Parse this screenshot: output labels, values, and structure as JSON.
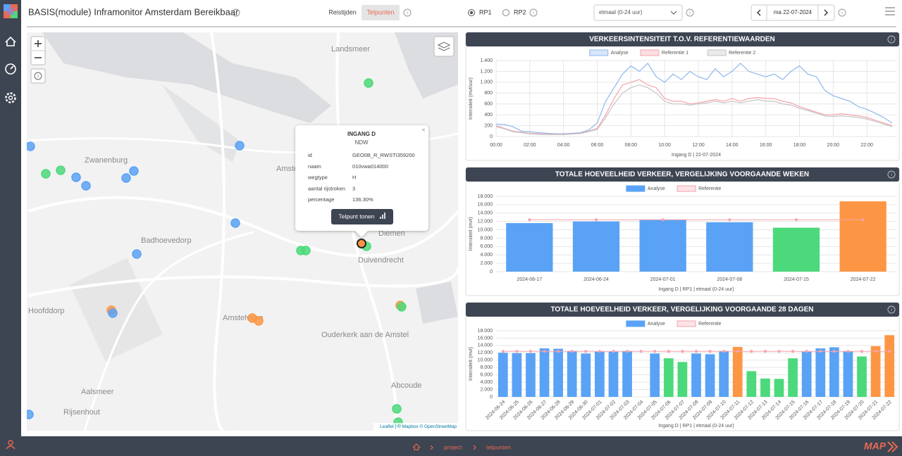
{
  "header": {
    "title": "BASIS(module) Inframonitor Amsterdam Bereikbaar",
    "tabs": [
      "Reistijden",
      "Telpunten"
    ],
    "radios": [
      "RP1",
      "RP2"
    ],
    "period": "etmaal (0-24 uur)",
    "date": "ma 22-07-2024"
  },
  "map": {
    "labels": [
      "Landsmeer",
      "Zwanenburg",
      "Badhoevedorp",
      "Hoofddorp",
      "Amsterdam",
      "Amstelveen",
      "Diemen",
      "Duivendrecht",
      "Ouderkerk aan de Amstel",
      "Abcoude",
      "Aalsmeer",
      "Rijsenhout"
    ],
    "popup": {
      "title": "INGANG D",
      "source": "NDW",
      "rows": [
        [
          "id",
          "GEO0B_R_RWSTI359200"
        ],
        [
          "naam",
          "010vwa014000"
        ],
        [
          "wegtype",
          "H"
        ],
        [
          "aantal rijstroken",
          "3"
        ],
        [
          "percentage",
          "136.30%"
        ]
      ],
      "button": "Telpunt tonen"
    },
    "attribution": "Leaflet | © Mapbox © OpenStreetMap"
  },
  "charts": [
    {
      "type": "line",
      "title": "VERKEERSINTENSITEIT T.O.V. REFERENTIEWAARDEN",
      "x": [
        0,
        0.5,
        1,
        1.5,
        2,
        2.5,
        3,
        3.5,
        4,
        4.5,
        5,
        5.5,
        6,
        6.5,
        7,
        7.5,
        8,
        8.5,
        9,
        9.5,
        10,
        10.5,
        11,
        11.5,
        12,
        12.5,
        13,
        13.5,
        14,
        14.5,
        15,
        15.5,
        16,
        16.5,
        17,
        17.5,
        18,
        18.5,
        19,
        19.5,
        20,
        20.5,
        21,
        21.5,
        22,
        22.5,
        23,
        23.5
      ],
      "series": [
        {
          "name": "Analyse",
          "color": "#8db8ee",
          "values": [
            230,
            220,
            180,
            100,
            90,
            70,
            60,
            50,
            50,
            60,
            70,
            120,
            250,
            650,
            900,
            1150,
            1300,
            1200,
            1350,
            1100,
            1000,
            1150,
            1050,
            1200,
            1100,
            1050,
            1250,
            1100,
            1200,
            1350,
            1200,
            1150,
            1100,
            1150,
            1050,
            1200,
            1300,
            1150,
            1100,
            850,
            750,
            700,
            650,
            550,
            500,
            430,
            350,
            250
          ]
        },
        {
          "name": "Referentie 1",
          "color": "#f4a3ad",
          "values": [
            200,
            150,
            100,
            80,
            60,
            50,
            40,
            40,
            40,
            50,
            60,
            100,
            150,
            400,
            700,
            950,
            1000,
            1050,
            950,
            900,
            700,
            650,
            650,
            600,
            620,
            650,
            680,
            650,
            700,
            650,
            700,
            720,
            700,
            700,
            650,
            620,
            550,
            500,
            450,
            400,
            400,
            420,
            400,
            380,
            350,
            300,
            250,
            200
          ]
        },
        {
          "name": "Referentie 2",
          "color": "#c4c4c4",
          "values": [
            180,
            140,
            90,
            70,
            50,
            40,
            35,
            35,
            35,
            45,
            55,
            90,
            130,
            350,
            600,
            800,
            900,
            950,
            900,
            800,
            650,
            600,
            600,
            580,
            600,
            620,
            650,
            620,
            650,
            620,
            650,
            680,
            650,
            650,
            600,
            580,
            520,
            480,
            430,
            380,
            370,
            380,
            370,
            350,
            320,
            280,
            230,
            180
          ]
        }
      ],
      "xlim": [
        0,
        23.75
      ],
      "xticks": [
        {
          "value": 0,
          "label": "00:00"
        },
        {
          "value": 2,
          "label": "02:00"
        },
        {
          "value": 4,
          "label": "04:00"
        },
        {
          "value": 6,
          "label": "06:00"
        },
        {
          "value": 8,
          "label": "08:00"
        },
        {
          "value": 10,
          "label": "10:00"
        },
        {
          "value": 12,
          "label": "12:00"
        },
        {
          "value": 14,
          "label": "14:00"
        },
        {
          "value": 16,
          "label": "16:00"
        },
        {
          "value": 18,
          "label": "18:00"
        },
        {
          "value": 20,
          "label": "20:00"
        },
        {
          "value": 22,
          "label": "22:00"
        }
      ],
      "ylim": [
        0,
        1400
      ],
      "yticks": [
        0,
        200,
        400,
        600,
        800,
        {
          "value": 1000,
          "label": "1.000"
        },
        {
          "value": 1200,
          "label": "1.200"
        },
        {
          "value": 1400,
          "label": "1.400"
        }
      ],
      "ylabel": "Intensiteit (mvt/uur)",
      "xlabel": "Ingang D | 22-07-2024",
      "grid": true
    },
    {
      "type": "bar",
      "title": "TOTALE HOEVEELHEID VERKEER, VERGELIJKING VOORGAANDE WEKEN",
      "categories": [
        "2024-06-17",
        "2024-06-24",
        "2024-07-01",
        "2024-07-08",
        "2024-07-15",
        "2024-07-22"
      ],
      "series": [
        {
          "name": "Analyse",
          "color": "#5aa2f5",
          "bar_colors": [
            "#5aa2f5",
            "#5aa2f5",
            "#5aa2f5",
            "#5aa2f5",
            "#4cd97b",
            "#fd9644"
          ],
          "values": [
            11600,
            12000,
            12400,
            11800,
            10500,
            16800
          ]
        },
        {
          "name": "Referentie",
          "color": "#f4a3ad",
          "values": [
            12400,
            12400,
            12400,
            12400,
            12400,
            12400
          ]
        }
      ],
      "ylim": [
        0,
        18000
      ],
      "yticks": [
        0,
        {
          "value": 2000,
          "label": "2.000"
        },
        {
          "value": 4000,
          "label": "4.000"
        },
        {
          "value": 6000,
          "label": "6.000"
        },
        {
          "value": 8000,
          "label": "8.000"
        },
        {
          "value": 10000,
          "label": "10.000"
        },
        {
          "value": 12000,
          "label": "12.000"
        },
        {
          "value": 14000,
          "label": "14.000"
        },
        {
          "value": 16000,
          "label": "16.000"
        },
        {
          "value": 18000,
          "label": "18.000"
        }
      ],
      "ylabel": "Intensiteit (mvt)",
      "xlabel": "Ingang D | RP1 | etmaal (0-24 uur)",
      "grid": true
    },
    {
      "type": "bar",
      "title": "TOTALE HOEVEELHEID VERKEER, VERGELIJKING VOORGAANDE 28 DAGEN",
      "categories": [
        "2024-06-24",
        "2024-06-25",
        "2024-06-26",
        "2024-06-27",
        "2024-06-28",
        "2024-06-29",
        "2024-06-30",
        "2024-07-01",
        "2024-07-02",
        "2024-07-03",
        "2024-07-04",
        "2024-07-05",
        "2024-07-06",
        "2024-07-07",
        "2024-07-08",
        "2024-07-09",
        "2024-07-10",
        "2024-07-11",
        "2024-07-12",
        "2024-07-13",
        "2024-07-14",
        "2024-07-15",
        "2024-07-16",
        "2024-07-17",
        "2024-07-18",
        "2024-07-19",
        "2024-07-20",
        "2024-07-21",
        "2024-07-22"
      ],
      "series": [
        {
          "name": "Analyse",
          "color": "#5aa2f5",
          "bar_colors": [
            "#5aa2f5",
            "#5aa2f5",
            "#5aa2f5",
            "#5aa2f5",
            "#5aa2f5",
            "#5aa2f5",
            "#5aa2f5",
            "#5aa2f5",
            "#5aa2f5",
            "#5aa2f5",
            "#5aa2f5",
            "#5aa2f5",
            "#4cd97b",
            "#4cd97b",
            "#5aa2f5",
            "#5aa2f5",
            "#5aa2f5",
            "#fd9644",
            "#4cd97b",
            "#4cd97b",
            "#4cd97b",
            "#4cd97b",
            "#5aa2f5",
            "#5aa2f5",
            "#5aa2f5",
            "#5aa2f5",
            "#4cd97b",
            "#fd9644",
            "#fd9644"
          ],
          "values": [
            12000,
            11900,
            11900,
            13200,
            13100,
            12500,
            11800,
            12300,
            12300,
            12500,
            null,
            11800,
            10500,
            9500,
            11800,
            11600,
            12500,
            13600,
            7000,
            5000,
            4900,
            10500,
            12300,
            13200,
            13500,
            12400,
            11000,
            13800,
            16800
          ]
        },
        {
          "name": "Referentie",
          "color": "#f4a3ad",
          "values": [
            12400,
            12400,
            12400,
            12400,
            12400,
            12400,
            12400,
            12400,
            12400,
            12400,
            12400,
            12400,
            12400,
            12400,
            12400,
            12400,
            12400,
            12400,
            12400,
            12400,
            12400,
            12400,
            12400,
            12400,
            12400,
            12400,
            12400,
            12400,
            12400
          ]
        }
      ],
      "ylim": [
        0,
        18000
      ],
      "yticks": [
        0,
        {
          "value": 2000,
          "label": "2.000"
        },
        {
          "value": 4000,
          "label": "4.000"
        },
        {
          "value": 6000,
          "label": "6.000"
        },
        {
          "value": 8000,
          "label": "8.000"
        },
        {
          "value": 10000,
          "label": "10.000"
        },
        {
          "value": 12000,
          "label": "12.000"
        },
        {
          "value": 14000,
          "label": "14.000"
        },
        {
          "value": 16000,
          "label": "16.000"
        },
        {
          "value": 18000,
          "label": "18.000"
        }
      ],
      "ylabel": "Intensiteit (mvt)",
      "xlabel": "Ingang D | RP1 | etmaal (0-24 uur)",
      "grid": true
    }
  ],
  "breadcrumb": [
    "project",
    "telpunten"
  ],
  "brand": "MAP"
}
